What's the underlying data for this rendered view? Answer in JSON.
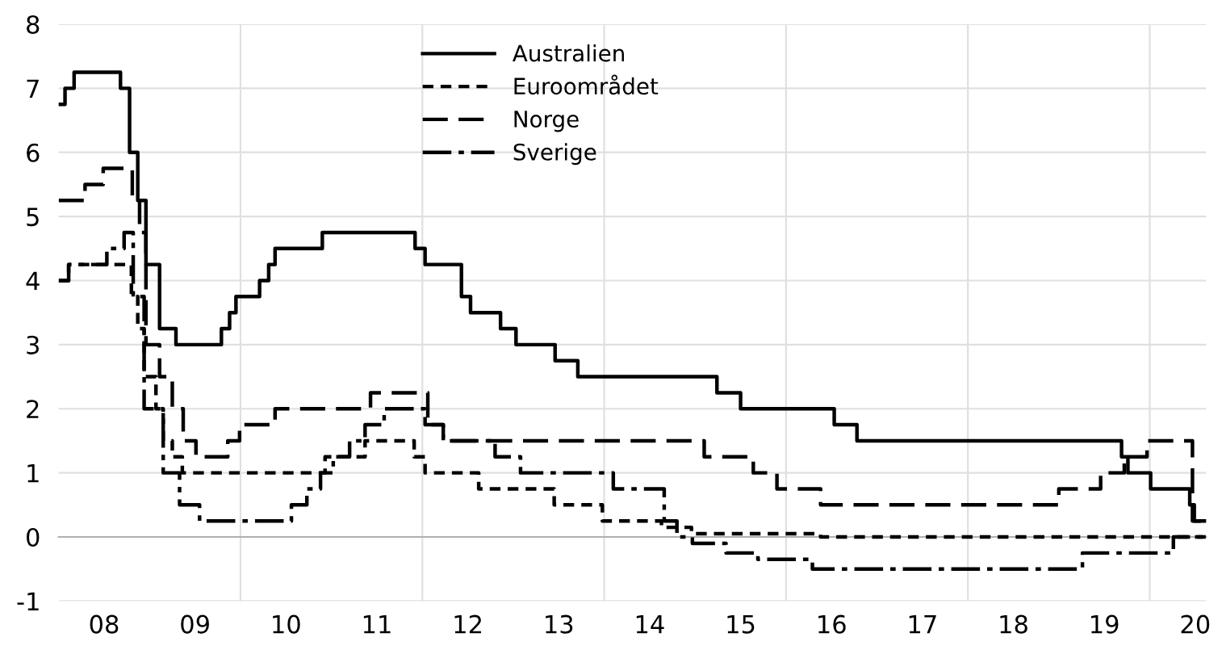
{
  "chart_data": {
    "type": "step",
    "xlim": [
      7.5,
      20.12
    ],
    "ylim": [
      -1,
      8
    ],
    "yticks": [
      -1,
      0,
      1,
      2,
      3,
      4,
      5,
      6,
      7,
      8
    ],
    "xticks": [
      {
        "value": 8,
        "label": "08"
      },
      {
        "value": 9,
        "label": "09"
      },
      {
        "value": 9.5,
        "label": null
      },
      10,
      11,
      {
        "value": 11.5,
        "label": null
      },
      12,
      13,
      {
        "value": 13.5,
        "label": null
      },
      14,
      15,
      {
        "value": 15.5,
        "label": null
      },
      16,
      17,
      {
        "value": 17.5,
        "label": null
      },
      18,
      19,
      {
        "value": 19.5,
        "label": null
      },
      20
    ],
    "grid": true,
    "legend": "top",
    "series": [
      {
        "name": "Australien",
        "color": "#000000",
        "line_style": "solid",
        "x": [
          7.5,
          7.57,
          7.67,
          8.18,
          8.28,
          8.37,
          8.46,
          8.61,
          8.79,
          9.29,
          9.38,
          9.45,
          9.71,
          9.81,
          9.88,
          10.4,
          11.42,
          11.53,
          11.93,
          12.03,
          12.36,
          12.53,
          12.96,
          13.21,
          14.74,
          15.0,
          16.03,
          16.28,
          19.19,
          19.26,
          19.51,
          19.94,
          19.99,
          20.12
        ],
        "values": [
          6.75,
          7.0,
          7.25,
          7.0,
          6.0,
          5.25,
          4.25,
          3.25,
          3.0,
          3.25,
          3.5,
          3.75,
          4.0,
          4.25,
          4.5,
          4.75,
          4.5,
          4.25,
          3.75,
          3.5,
          3.25,
          3.0,
          2.75,
          2.5,
          2.25,
          2.0,
          1.75,
          1.5,
          1.25,
          1.0,
          0.75,
          0.5,
          0.25,
          0.25
        ]
      },
      {
        "name": "Euroområdet",
        "color": "#000000",
        "line_style": "dotted",
        "x": [
          7.5,
          7.61,
          8.3,
          8.37,
          8.44,
          8.57,
          8.65,
          8.75,
          8.86,
          10.43,
          10.87,
          11.41,
          11.53,
          12.12,
          12.95,
          13.48,
          14.13,
          14.46,
          15.88,
          20.12
        ],
        "values": [
          4.0,
          4.25,
          3.75,
          3.25,
          2.5,
          2.0,
          1.5,
          1.25,
          1.0,
          1.25,
          1.5,
          1.25,
          1.0,
          0.75,
          0.5,
          0.25,
          0.15,
          0.05,
          0.0,
          0.0
        ]
      },
      {
        "name": "Norge",
        "color": "#000000",
        "line_style": "dashed",
        "x": [
          7.5,
          7.79,
          7.99,
          8.31,
          8.39,
          8.46,
          8.61,
          8.75,
          8.87,
          9.01,
          9.36,
          9.49,
          9.88,
          10.93,
          11.56,
          11.73,
          14.6,
          15.14,
          15.4,
          15.88,
          18.5,
          18.96,
          19.22,
          19.47,
          19.97,
          20.12
        ],
        "values": [
          5.25,
          5.5,
          5.75,
          5.25,
          4.75,
          3.0,
          2.5,
          2.0,
          1.5,
          1.25,
          1.5,
          1.75,
          2.0,
          2.25,
          1.75,
          1.5,
          1.25,
          1.0,
          0.75,
          0.5,
          0.75,
          1.0,
          1.25,
          1.5,
          0.25,
          0.25
        ]
      },
      {
        "name": "Sverige",
        "color": "#000000",
        "line_style": "dashdot",
        "x": [
          7.5,
          7.61,
          8.03,
          8.22,
          8.32,
          8.44,
          8.65,
          8.83,
          9.05,
          10.06,
          10.23,
          10.38,
          10.52,
          10.7,
          10.87,
          11.08,
          11.53,
          11.73,
          12.3,
          12.58,
          13.6,
          14.16,
          14.3,
          14.47,
          14.84,
          15.19,
          15.79,
          18.76,
          19.76,
          20.12
        ],
        "values": [
          4.0,
          4.25,
          4.5,
          4.75,
          3.75,
          2.0,
          1.0,
          0.5,
          0.25,
          0.5,
          0.75,
          1.0,
          1.25,
          1.5,
          1.75,
          2.0,
          1.75,
          1.5,
          1.25,
          1.0,
          0.75,
          0.25,
          0.0,
          -0.1,
          -0.25,
          -0.35,
          -0.5,
          -0.25,
          0.0,
          0.0
        ]
      }
    ]
  }
}
